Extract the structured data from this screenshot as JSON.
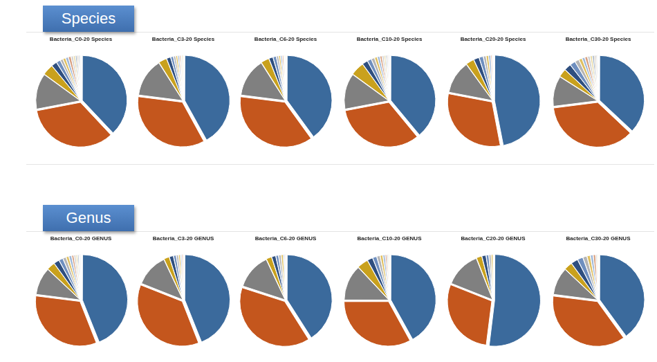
{
  "headers": [
    "Species",
    "Genus"
  ],
  "chart_data": [
    {
      "type": "pie",
      "title": "Bacteria_C0-20 Species",
      "values": [
        38,
        34,
        13,
        4,
        2,
        1.5,
        1,
        1,
        1,
        1,
        0.8,
        0.7,
        0.6,
        0.5,
        0.5,
        0.4
      ],
      "colors": [
        "#3b6a9c",
        "#c4561d",
        "#808080",
        "#c9a11d",
        "#2f4f7f",
        "#6f8fbf",
        "#b5b5b5",
        "#e0c060",
        "#9fb8d8",
        "#d8a080",
        "#cfcfcf",
        "#e8d8a0",
        "#a0b0c0",
        "#d0c0b0",
        "#c0c8d0",
        "#e0e0e0"
      ]
    },
    {
      "type": "pie",
      "title": "Bacteria_C3-20 Species",
      "values": [
        42,
        35,
        14,
        3,
        1.5,
        1,
        0.8,
        0.7,
        0.6,
        0.5,
        0.4,
        0.5
      ],
      "colors": [
        "#3b6a9c",
        "#c4561d",
        "#808080",
        "#c9a11d",
        "#2f4f7f",
        "#6f8fbf",
        "#b5b5b5",
        "#e0c060",
        "#9fb8d8",
        "#d8a080",
        "#cfcfcf",
        "#e8d8a0"
      ]
    },
    {
      "type": "pie",
      "title": "Bacteria_C6-20 Species",
      "values": [
        40,
        37,
        14,
        3,
        1.5,
        1.2,
        0.8,
        0.7,
        0.6,
        0.5,
        0.4,
        0.3
      ],
      "colors": [
        "#3b6a9c",
        "#c4561d",
        "#808080",
        "#c9a11d",
        "#2f4f7f",
        "#6f8fbf",
        "#b5b5b5",
        "#e0c060",
        "#9fb8d8",
        "#d8a080",
        "#cfcfcf",
        "#e8d8a0"
      ]
    },
    {
      "type": "pie",
      "title": "Bacteria_C10-20 Species",
      "values": [
        39,
        33,
        13,
        5,
        2,
        1.5,
        1.2,
        1,
        0.9,
        0.8,
        0.7,
        0.6,
        0.5,
        0.4,
        0.4
      ],
      "colors": [
        "#3b6a9c",
        "#c4561d",
        "#808080",
        "#c9a11d",
        "#2f4f7f",
        "#6f8fbf",
        "#b5b5b5",
        "#e0c060",
        "#9fb8d8",
        "#d8a080",
        "#cfcfcf",
        "#e8d8a0",
        "#a0b0c0",
        "#d0c0b0",
        "#c0c8d0"
      ]
    },
    {
      "type": "pie",
      "title": "Bacteria_C20-20 Species",
      "values": [
        47,
        31,
        12,
        3,
        2,
        1.5,
        1,
        0.9,
        0.8,
        0.5,
        0.3
      ],
      "colors": [
        "#3b6a9c",
        "#c4561d",
        "#808080",
        "#c9a11d",
        "#2f4f7f",
        "#6f8fbf",
        "#b5b5b5",
        "#e0c060",
        "#9fb8d8",
        "#d8a080",
        "#cfcfcf"
      ]
    },
    {
      "type": "pie",
      "title": "Bacteria_C30-20 Species",
      "values": [
        37,
        36,
        11,
        3,
        2.5,
        2,
        1.5,
        1.2,
        1,
        1,
        0.9,
        0.8,
        0.7,
        0.6,
        0.5,
        0.3
      ],
      "colors": [
        "#3b6a9c",
        "#c4561d",
        "#808080",
        "#c9a11d",
        "#2f4f7f",
        "#6f8fbf",
        "#b5b5b5",
        "#e0c060",
        "#9fb8d8",
        "#d8a080",
        "#cfcfcf",
        "#e8d8a0",
        "#a0b0c0",
        "#d0c0b0",
        "#c0c8d0",
        "#e0e0e0"
      ]
    },
    {
      "type": "pie",
      "title": "Bacteria_C0-20 GENUS",
      "values": [
        44,
        33,
        10,
        3,
        2,
        1.5,
        1.2,
        1,
        1,
        0.8,
        0.7,
        0.6,
        0.5,
        0.4,
        0.3
      ],
      "colors": [
        "#3b6a9c",
        "#c4561d",
        "#808080",
        "#c9a11d",
        "#2f4f7f",
        "#6f8fbf",
        "#b5b5b5",
        "#e0c060",
        "#9fb8d8",
        "#d8a080",
        "#cfcfcf",
        "#e8d8a0",
        "#a0b0c0",
        "#d0c0b0",
        "#c0c8d0"
      ]
    },
    {
      "type": "pie",
      "title": "Bacteria_C3-20 GENUS",
      "values": [
        44,
        37,
        12,
        2,
        1.5,
        1,
        0.8,
        0.7,
        0.5,
        0.5
      ],
      "colors": [
        "#3b6a9c",
        "#c4561d",
        "#808080",
        "#c9a11d",
        "#2f4f7f",
        "#6f8fbf",
        "#b5b5b5",
        "#e0c060",
        "#9fb8d8",
        "#d8a080"
      ]
    },
    {
      "type": "pie",
      "title": "Bacteria_C6-20 GENUS",
      "values": [
        41,
        39,
        13,
        2,
        1.5,
        1,
        0.9,
        0.8,
        0.5,
        0.3
      ],
      "colors": [
        "#3b6a9c",
        "#c4561d",
        "#808080",
        "#c9a11d",
        "#2f4f7f",
        "#6f8fbf",
        "#b5b5b5",
        "#e0c060",
        "#9fb8d8",
        "#d8a080"
      ]
    },
    {
      "type": "pie",
      "title": "Bacteria_C10-20 GENUS",
      "values": [
        42,
        33,
        13,
        4,
        2,
        1.5,
        1.2,
        1,
        0.8,
        0.6,
        0.5,
        0.4
      ],
      "colors": [
        "#3b6a9c",
        "#c4561d",
        "#808080",
        "#c9a11d",
        "#2f4f7f",
        "#6f8fbf",
        "#b5b5b5",
        "#e0c060",
        "#9fb8d8",
        "#d8a080",
        "#cfcfcf",
        "#e8d8a0"
      ]
    },
    {
      "type": "pie",
      "title": "Bacteria_C20-20 GENUS",
      "values": [
        52,
        29,
        13,
        2,
        1.5,
        1,
        0.8,
        0.7
      ],
      "colors": [
        "#3b6a9c",
        "#c4561d",
        "#808080",
        "#c9a11d",
        "#2f4f7f",
        "#6f8fbf",
        "#b5b5b5",
        "#e0c060"
      ]
    },
    {
      "type": "pie",
      "title": "Bacteria_C30-20 GENUS",
      "values": [
        40,
        37,
        10,
        3,
        2.5,
        2,
        1.5,
        1.2,
        1,
        0.9,
        0.5,
        0.4
      ],
      "colors": [
        "#3b6a9c",
        "#c4561d",
        "#808080",
        "#c9a11d",
        "#2f4f7f",
        "#6f8fbf",
        "#b5b5b5",
        "#e0c060",
        "#9fb8d8",
        "#d8a080",
        "#cfcfcf",
        "#e8d8a0"
      ]
    }
  ]
}
